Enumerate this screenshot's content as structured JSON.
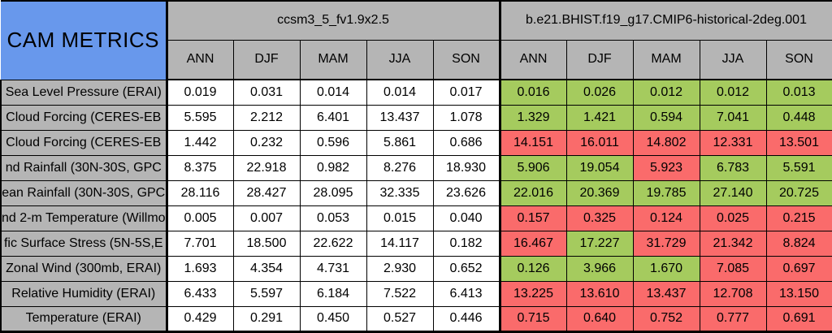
{
  "title": "CAM METRICS",
  "colors": {
    "title_blue": "#6898ec",
    "header_gray": "#b5b5b5",
    "cell_green": "#a5cb5e",
    "cell_red": "#fa6b6b",
    "cell_white": "#ffffff",
    "border_black": "#000000"
  },
  "chart_data": {
    "type": "table",
    "title": "CAM METRICS",
    "groups": [
      {
        "name": "ccsm3_5_fv1.9x2.5",
        "seasons": [
          "ANN",
          "DJF",
          "MAM",
          "JJA",
          "SON"
        ]
      },
      {
        "name": "b.e21.BHIST.f19_g17.CMIP6-historical-2deg.001",
        "seasons": [
          "ANN",
          "DJF",
          "MAM",
          "JJA",
          "SON"
        ]
      }
    ],
    "rows": [
      {
        "label": "Sea Level Pressure (ERAI)",
        "baseline": [
          "0.019",
          "0.031",
          "0.014",
          "0.014",
          "0.017"
        ],
        "test": [
          {
            "value": "0.016",
            "color": "green"
          },
          {
            "value": "0.026",
            "color": "green"
          },
          {
            "value": "0.012",
            "color": "green"
          },
          {
            "value": "0.012",
            "color": "green"
          },
          {
            "value": "0.013",
            "color": "green"
          }
        ]
      },
      {
        "label": "Cloud Forcing (CERES-EB",
        "baseline": [
          "5.595",
          "2.212",
          "6.401",
          "13.437",
          "1.078"
        ],
        "test": [
          {
            "value": "1.329",
            "color": "green"
          },
          {
            "value": "1.421",
            "color": "green"
          },
          {
            "value": "0.594",
            "color": "green"
          },
          {
            "value": "7.041",
            "color": "green"
          },
          {
            "value": "0.448",
            "color": "green"
          }
        ]
      },
      {
        "label": "Cloud Forcing (CERES-EB",
        "baseline": [
          "1.442",
          "0.232",
          "0.596",
          "5.861",
          "0.686"
        ],
        "test": [
          {
            "value": "14.151",
            "color": "red"
          },
          {
            "value": "16.011",
            "color": "red"
          },
          {
            "value": "14.802",
            "color": "red"
          },
          {
            "value": "12.331",
            "color": "red"
          },
          {
            "value": "13.501",
            "color": "red"
          }
        ]
      },
      {
        "label": "nd Rainfall (30N-30S, GPC",
        "baseline": [
          "8.375",
          "22.918",
          "0.982",
          "8.276",
          "18.930"
        ],
        "test": [
          {
            "value": "5.906",
            "color": "green"
          },
          {
            "value": "19.054",
            "color": "green"
          },
          {
            "value": "5.923",
            "color": "red"
          },
          {
            "value": "6.783",
            "color": "green"
          },
          {
            "value": "5.591",
            "color": "green"
          }
        ]
      },
      {
        "label": "ean Rainfall (30N-30S, GPC",
        "baseline": [
          "28.116",
          "28.427",
          "28.095",
          "32.335",
          "23.626"
        ],
        "test": [
          {
            "value": "22.016",
            "color": "green"
          },
          {
            "value": "20.369",
            "color": "green"
          },
          {
            "value": "19.785",
            "color": "green"
          },
          {
            "value": "27.140",
            "color": "green"
          },
          {
            "value": "20.725",
            "color": "green"
          }
        ]
      },
      {
        "label": "nd 2-m Temperature (Willmo",
        "baseline": [
          "0.005",
          "0.007",
          "0.053",
          "0.015",
          "0.040"
        ],
        "test": [
          {
            "value": "0.157",
            "color": "red"
          },
          {
            "value": "0.325",
            "color": "red"
          },
          {
            "value": "0.124",
            "color": "red"
          },
          {
            "value": "0.025",
            "color": "red"
          },
          {
            "value": "0.215",
            "color": "red"
          }
        ]
      },
      {
        "label": "fic Surface Stress (5N-5S,E",
        "baseline": [
          "7.701",
          "18.500",
          "22.622",
          "14.117",
          "0.182"
        ],
        "test": [
          {
            "value": "16.467",
            "color": "red"
          },
          {
            "value": "17.227",
            "color": "green"
          },
          {
            "value": "31.729",
            "color": "red"
          },
          {
            "value": "21.342",
            "color": "red"
          },
          {
            "value": "8.824",
            "color": "red"
          }
        ]
      },
      {
        "label": "Zonal Wind (300mb, ERAI)",
        "baseline": [
          "1.693",
          "4.354",
          "4.731",
          "2.930",
          "0.652"
        ],
        "test": [
          {
            "value": "0.126",
            "color": "green"
          },
          {
            "value": "3.966",
            "color": "green"
          },
          {
            "value": "1.670",
            "color": "green"
          },
          {
            "value": "7.085",
            "color": "red"
          },
          {
            "value": "0.697",
            "color": "red"
          }
        ]
      },
      {
        "label": "Relative Humidity (ERAI)",
        "baseline": [
          "6.433",
          "5.597",
          "6.184",
          "7.522",
          "6.413"
        ],
        "test": [
          {
            "value": "13.225",
            "color": "red"
          },
          {
            "value": "13.610",
            "color": "red"
          },
          {
            "value": "13.437",
            "color": "red"
          },
          {
            "value": "12.708",
            "color": "red"
          },
          {
            "value": "13.150",
            "color": "red"
          }
        ]
      },
      {
        "label": "Temperature (ERAI)",
        "baseline": [
          "0.429",
          "0.291",
          "0.450",
          "0.527",
          "0.446"
        ],
        "test": [
          {
            "value": "0.715",
            "color": "red"
          },
          {
            "value": "0.640",
            "color": "red"
          },
          {
            "value": "0.752",
            "color": "red"
          },
          {
            "value": "0.777",
            "color": "red"
          },
          {
            "value": "0.691",
            "color": "red"
          }
        ]
      }
    ]
  }
}
